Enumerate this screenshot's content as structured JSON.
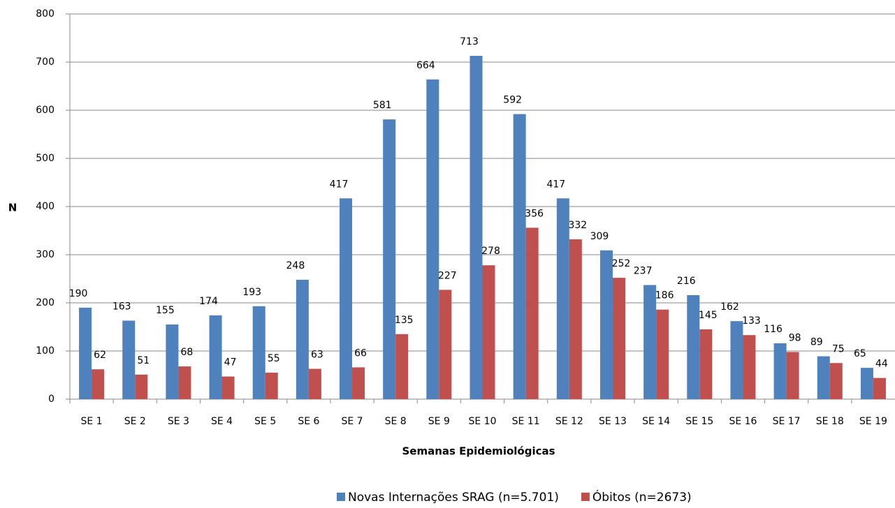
{
  "chart_data": {
    "type": "bar",
    "x_label": "Semanas Epidemiológicas",
    "y_label": "N",
    "categories": [
      "SE 1",
      "SE 2",
      "SE 3",
      "SE 4",
      "SE 5",
      "SE 6",
      "SE 7",
      "SE 8",
      "SE 9",
      "SE 10",
      "SE 11",
      "SE 12",
      "SE 13",
      "SE 14",
      "SE 15",
      "SE 16",
      "SE 17",
      "SE 18",
      "SE 19"
    ],
    "series": [
      {
        "name": "Novas Internações SRAG (n=5.701)",
        "color": "#4f81bd",
        "values": [
          190,
          163,
          155,
          174,
          193,
          248,
          417,
          581,
          664,
          713,
          592,
          417,
          309,
          237,
          216,
          162,
          116,
          89,
          65
        ]
      },
      {
        "name": "Óbitos (n=2673)",
        "color": "#c0504d",
        "values": [
          62,
          51,
          68,
          47,
          55,
          63,
          66,
          135,
          227,
          278,
          356,
          332,
          252,
          186,
          145,
          133,
          98,
          75,
          44
        ]
      }
    ],
    "ylim": [
      0,
      800
    ],
    "yticks": [
      0,
      100,
      200,
      300,
      400,
      500,
      600,
      700,
      800
    ],
    "grid": true,
    "legend": "bottom"
  }
}
